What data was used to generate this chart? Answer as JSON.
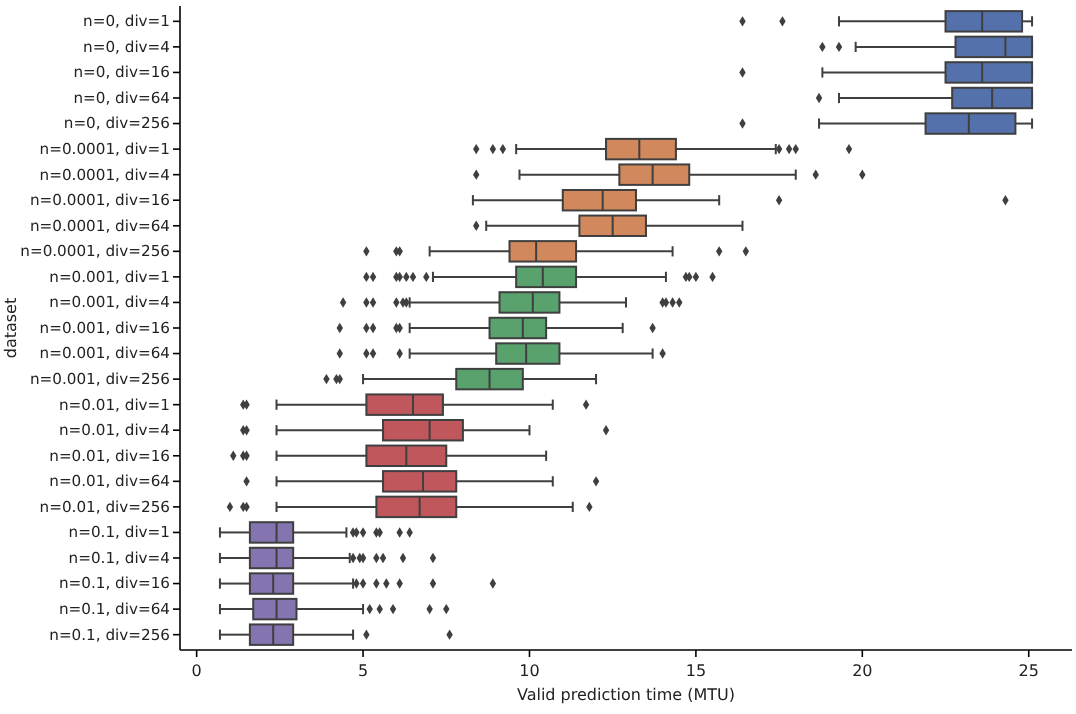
{
  "chart_data": {
    "type": "box",
    "orientation": "horizontal",
    "xlabel": "Valid prediction time (MTU)",
    "ylabel": "dataset",
    "categories": [
      "n=0, div=1",
      "n=0, div=4",
      "n=0, div=16",
      "n=0, div=64",
      "n=0, div=256",
      "n=0.0001, div=1",
      "n=0.0001, div=4",
      "n=0.0001, div=16",
      "n=0.0001, div=64",
      "n=0.0001, div=256",
      "n=0.001, div=1",
      "n=0.001, div=4",
      "n=0.001, div=16",
      "n=0.001, div=64",
      "n=0.001, div=256",
      "n=0.01, div=1",
      "n=0.01, div=4",
      "n=0.01, div=16",
      "n=0.01, div=64",
      "n=0.01, div=256",
      "n=0.1, div=1",
      "n=0.1, div=4",
      "n=0.1, div=16",
      "n=0.1, div=64",
      "n=0.1, div=256"
    ],
    "colors": [
      "#5471ab",
      "#5471ab",
      "#5471ab",
      "#5471ab",
      "#5471ab",
      "#d1885c",
      "#d1885c",
      "#d1885c",
      "#d1885c",
      "#d1885c",
      "#59a26e",
      "#59a26e",
      "#59a26e",
      "#59a26e",
      "#59a26e",
      "#c0575c",
      "#c0575c",
      "#c0575c",
      "#c0575c",
      "#c0575c",
      "#8474b0",
      "#8474b0",
      "#8474b0",
      "#8474b0",
      "#8474b0"
    ],
    "boxes": [
      {
        "low": 19.3,
        "q1": 22.5,
        "median": 23.6,
        "q3": 24.8,
        "high": 25.1,
        "outliers": [
          16.4,
          17.6
        ]
      },
      {
        "low": 19.8,
        "q1": 22.8,
        "median": 24.3,
        "q3": 25.1,
        "high": 25.1,
        "outliers": [
          18.8,
          19.3
        ]
      },
      {
        "low": 18.8,
        "q1": 22.5,
        "median": 23.6,
        "q3": 25.1,
        "high": 25.1,
        "outliers": [
          16.4
        ]
      },
      {
        "low": 19.3,
        "q1": 22.7,
        "median": 23.9,
        "q3": 25.1,
        "high": 25.1,
        "outliers": [
          18.7
        ]
      },
      {
        "low": 18.7,
        "q1": 21.9,
        "median": 23.2,
        "q3": 24.6,
        "high": 25.1,
        "outliers": [
          16.4
        ]
      },
      {
        "low": 9.6,
        "q1": 12.3,
        "median": 13.3,
        "q3": 14.4,
        "high": 17.4,
        "outliers": [
          8.4,
          8.9,
          9.2,
          17.5,
          17.8,
          18.0,
          19.6
        ]
      },
      {
        "low": 9.7,
        "q1": 12.7,
        "median": 13.7,
        "q3": 14.8,
        "high": 18.0,
        "outliers": [
          8.4,
          18.6,
          20.0
        ]
      },
      {
        "low": 8.3,
        "q1": 11.0,
        "median": 12.2,
        "q3": 13.2,
        "high": 15.7,
        "outliers": [
          17.5,
          24.3
        ]
      },
      {
        "low": 8.7,
        "q1": 11.5,
        "median": 12.5,
        "q3": 13.5,
        "high": 16.4,
        "outliers": [
          8.4
        ]
      },
      {
        "low": 7.0,
        "q1": 9.4,
        "median": 10.2,
        "q3": 11.4,
        "high": 14.3,
        "outliers": [
          5.1,
          6.0,
          6.1,
          15.7,
          16.5
        ]
      },
      {
        "low": 7.1,
        "q1": 9.6,
        "median": 10.4,
        "q3": 11.4,
        "high": 14.1,
        "outliers": [
          5.1,
          5.3,
          6.0,
          6.1,
          6.3,
          6.5,
          6.9,
          14.7,
          14.8,
          15.0,
          15.5
        ]
      },
      {
        "low": 6.4,
        "q1": 9.1,
        "median": 10.1,
        "q3": 10.9,
        "high": 12.9,
        "outliers": [
          4.4,
          5.1,
          5.3,
          6.0,
          6.2,
          6.3,
          14.0,
          14.1,
          14.3,
          14.5
        ]
      },
      {
        "low": 6.4,
        "q1": 8.8,
        "median": 9.8,
        "q3": 10.5,
        "high": 12.8,
        "outliers": [
          4.3,
          5.1,
          5.3,
          6.0,
          6.1,
          13.7
        ]
      },
      {
        "low": 6.4,
        "q1": 9.0,
        "median": 9.9,
        "q3": 10.9,
        "high": 13.7,
        "outliers": [
          4.3,
          5.1,
          5.3,
          6.1,
          14.0
        ]
      },
      {
        "low": 5.0,
        "q1": 7.8,
        "median": 8.8,
        "q3": 9.8,
        "high": 12.0,
        "outliers": [
          3.9,
          4.2,
          4.3
        ]
      },
      {
        "low": 2.4,
        "q1": 5.1,
        "median": 6.5,
        "q3": 7.4,
        "high": 10.7,
        "outliers": [
          1.4,
          1.5,
          11.7
        ]
      },
      {
        "low": 2.4,
        "q1": 5.6,
        "median": 7.0,
        "q3": 8.0,
        "high": 10.0,
        "outliers": [
          1.4,
          1.5,
          12.3
        ]
      },
      {
        "low": 2.4,
        "q1": 5.1,
        "median": 6.3,
        "q3": 7.5,
        "high": 10.5,
        "outliers": [
          1.1,
          1.4,
          1.5
        ]
      },
      {
        "low": 2.4,
        "q1": 5.6,
        "median": 6.8,
        "q3": 7.8,
        "high": 10.7,
        "outliers": [
          1.5,
          12.0
        ]
      },
      {
        "low": 2.4,
        "q1": 5.4,
        "median": 6.7,
        "q3": 7.8,
        "high": 11.3,
        "outliers": [
          1.0,
          1.4,
          1.5,
          11.8
        ]
      },
      {
        "low": 0.7,
        "q1": 1.6,
        "median": 2.4,
        "q3": 2.9,
        "high": 4.5,
        "outliers": [
          4.7,
          4.8,
          5.0,
          5.4,
          5.5,
          6.1,
          6.4
        ]
      },
      {
        "low": 0.7,
        "q1": 1.6,
        "median": 2.4,
        "q3": 2.9,
        "high": 4.6,
        "outliers": [
          4.7,
          4.9,
          5.0,
          5.4,
          5.6,
          6.2,
          7.1
        ]
      },
      {
        "low": 0.7,
        "q1": 1.6,
        "median": 2.3,
        "q3": 2.9,
        "high": 4.7,
        "outliers": [
          4.8,
          5.0,
          5.4,
          5.7,
          6.1,
          7.1,
          8.9
        ]
      },
      {
        "low": 0.7,
        "q1": 1.7,
        "median": 2.4,
        "q3": 3.0,
        "high": 5.0,
        "outliers": [
          5.2,
          5.5,
          5.9,
          7.0,
          7.5
        ]
      },
      {
        "low": 0.7,
        "q1": 1.6,
        "median": 2.3,
        "q3": 2.9,
        "high": 4.7,
        "outliers": [
          5.1,
          7.6
        ]
      }
    ],
    "xlim": [
      -0.5,
      26.3
    ],
    "xticks": [
      0,
      5,
      10,
      15,
      20,
      25
    ]
  }
}
